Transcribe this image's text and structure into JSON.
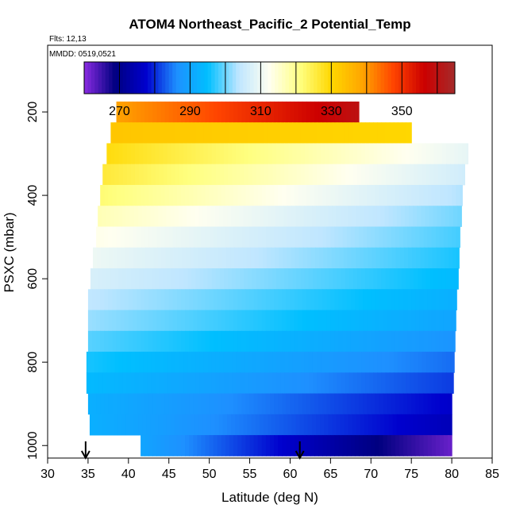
{
  "chart_data": {
    "type": "heatmap",
    "title": "ATOM4 Northeast_Pacific_2 Potential_Temp",
    "annotations": {
      "flights": "Flts: 12,13",
      "dates": "MMDD: 0519,0521"
    },
    "xlabel": "Latitude (deg N)",
    "ylabel": "PSXC (mbar)",
    "xlim": [
      30,
      85
    ],
    "ylim": [
      1030,
      40
    ],
    "y_reversed": true,
    "x_ticks": [
      "30",
      "35",
      "40",
      "45",
      "50",
      "55",
      "60",
      "65",
      "70",
      "75",
      "80",
      "85"
    ],
    "y_ticks": [
      "200",
      "400",
      "600",
      "800",
      "1000"
    ],
    "colorbar": {
      "range": [
        260,
        365
      ],
      "ticks": [
        "270",
        "290",
        "310",
        "330",
        "350"
      ],
      "colors": [
        "#8a2be2",
        "#000080",
        "#0000cd",
        "#1e90ff",
        "#00bfff",
        "#bfe6ff",
        "#fffff0",
        "#ffff80",
        "#ffd700",
        "#ffa500",
        "#ff4500",
        "#cc0000",
        "#a52a2a"
      ]
    },
    "arrows_at_latitude": [
      34.7,
      61.2
    ],
    "layers": [
      {
        "p": 200,
        "lat_start": 38.5,
        "lat_end": 68.5,
        "temp_start": 339,
        "temp_end": 360
      },
      {
        "p": 250,
        "lat_start": 37.8,
        "lat_end": 75.0,
        "temp_start": 333,
        "temp_end": 330
      },
      {
        "p": 300,
        "lat_start": 37.3,
        "lat_end": 82.0,
        "temp_start": 329,
        "temp_end": 309
      },
      {
        "p": 350,
        "lat_start": 36.8,
        "lat_end": 81.6,
        "temp_start": 326,
        "temp_end": 306
      },
      {
        "p": 400,
        "lat_start": 36.5,
        "lat_end": 81.3,
        "temp_start": 322,
        "temp_end": 303
      },
      {
        "p": 450,
        "lat_start": 36.2,
        "lat_end": 81.2,
        "temp_start": 317,
        "temp_end": 300
      },
      {
        "p": 500,
        "lat_start": 36.0,
        "lat_end": 81.0,
        "temp_start": 313,
        "temp_end": 298
      },
      {
        "p": 550,
        "lat_start": 35.6,
        "lat_end": 80.9,
        "temp_start": 310,
        "temp_end": 296
      },
      {
        "p": 600,
        "lat_start": 35.3,
        "lat_end": 80.8,
        "temp_start": 307,
        "temp_end": 294
      },
      {
        "p": 650,
        "lat_start": 35.0,
        "lat_end": 80.6,
        "temp_start": 304,
        "temp_end": 292
      },
      {
        "p": 700,
        "lat_start": 35.0,
        "lat_end": 80.5,
        "temp_start": 302,
        "temp_end": 290
      },
      {
        "p": 750,
        "lat_start": 35.0,
        "lat_end": 80.4,
        "temp_start": 299,
        "temp_end": 287
      },
      {
        "p": 800,
        "lat_start": 34.8,
        "lat_end": 80.3,
        "temp_start": 296,
        "temp_end": 284
      },
      {
        "p": 850,
        "lat_start": 34.8,
        "lat_end": 80.2,
        "temp_start": 294,
        "temp_end": 281
      },
      {
        "p": 900,
        "lat_start": 35.0,
        "lat_end": 80.0,
        "temp_start": 292,
        "temp_end": 277
      },
      {
        "p": 950,
        "lat_start": 35.2,
        "lat_end": 80.0,
        "temp_start": 292,
        "temp_end": 275
      },
      {
        "p": 1000,
        "lat_start": 41.5,
        "lat_end": 80.0,
        "temp_start": 290,
        "temp_end": 262
      }
    ]
  }
}
